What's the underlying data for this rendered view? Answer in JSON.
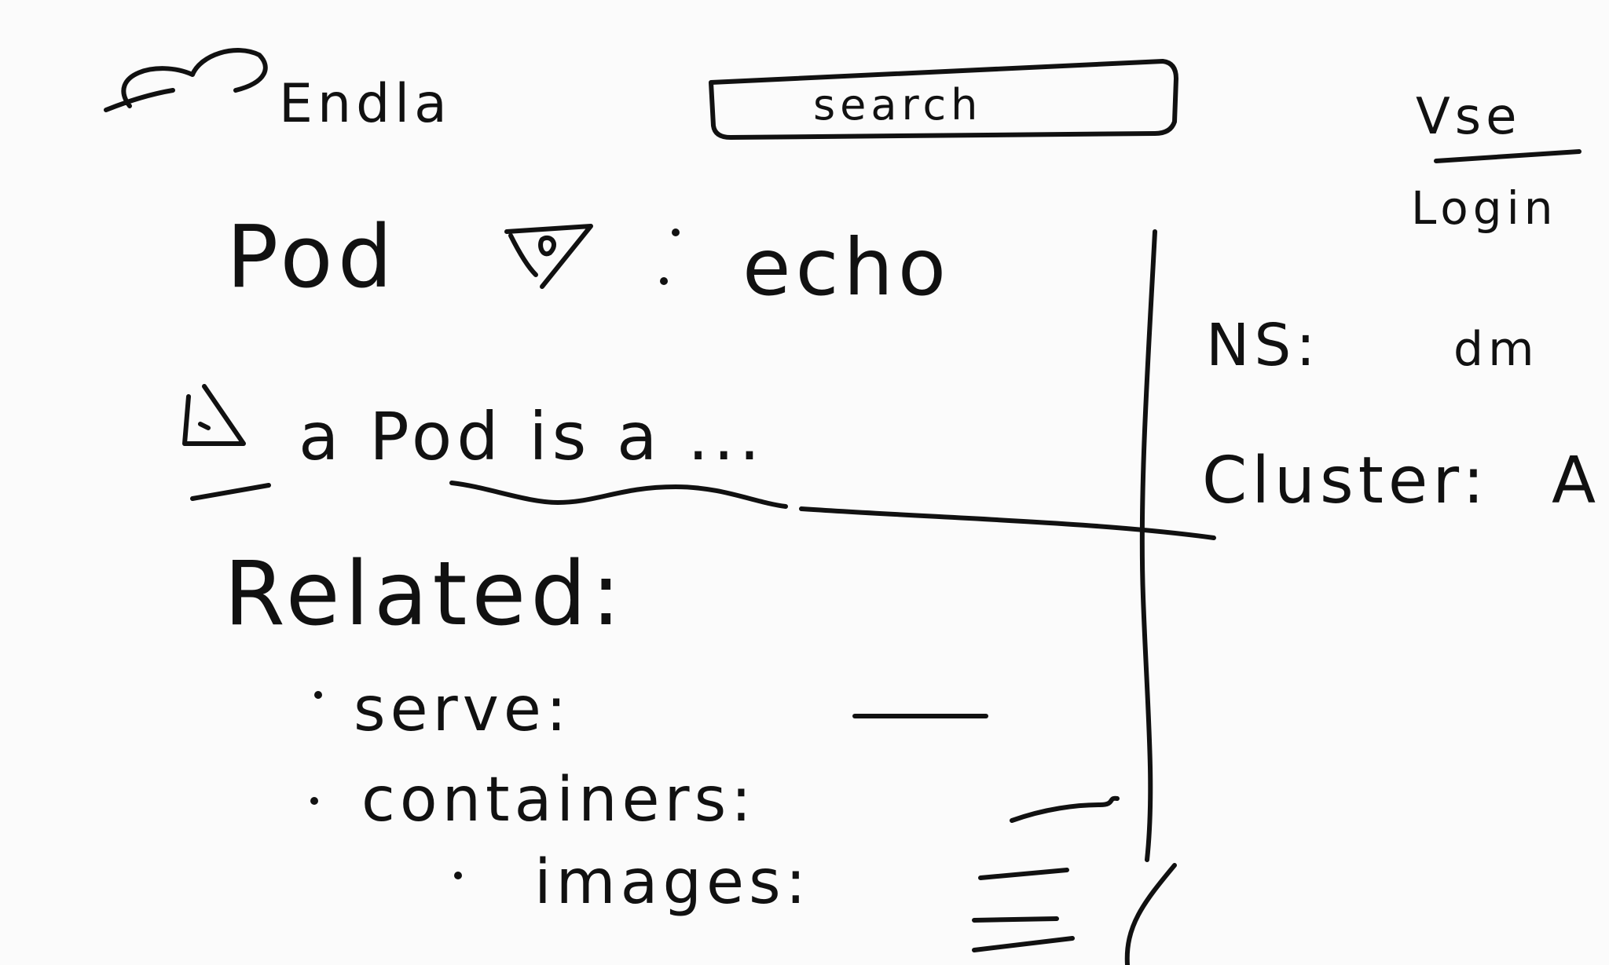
{
  "header": {
    "brand": "Endla",
    "search_label": "search",
    "right_link_top": "Vse",
    "right_link_bottom": "Login"
  },
  "main": {
    "title": "Pod",
    "title_value": "echo",
    "subtitle": "a Pod is a ...",
    "related_heading": "Related:",
    "items": [
      {
        "label": "serve:"
      },
      {
        "label": "containers:"
      },
      {
        "label": "images:"
      }
    ]
  },
  "sidebar": {
    "ns_label": "NS:",
    "ns_value": "dm",
    "cluster_label": "Cluster:",
    "cluster_value": "A"
  },
  "colors": {
    "ink": "#111111",
    "paper": "#fbfbfb"
  },
  "icons": {
    "brand": "logo-squiggle-icon",
    "pod": "eye-icon",
    "info": "triangle-info-icon"
  }
}
